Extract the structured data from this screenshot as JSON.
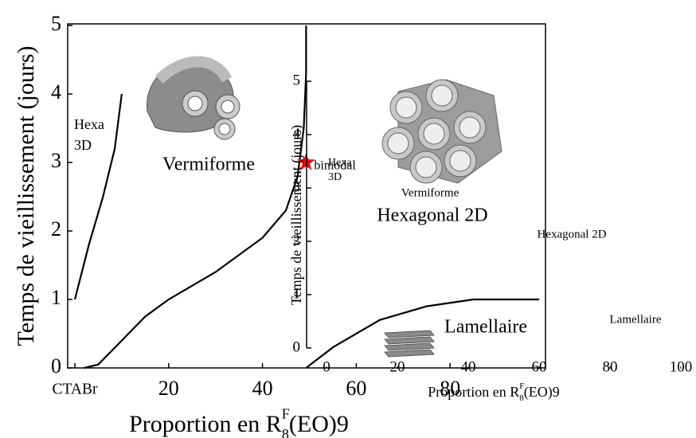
{
  "chart_data": [
    {
      "type": "line",
      "x_label": {
        "text": "Proportion en R",
        "sup": "F",
        "sub": "8",
        "rest": "(EO)9"
      },
      "y_label": "Temps de vieillissement (jours)",
      "xlim": [
        0,
        100
      ],
      "ylim": [
        0,
        5
      ],
      "xticks": [
        {
          "value": 0,
          "label": "CTABr"
        },
        20,
        40,
        60,
        80
      ],
      "yticks": [
        0,
        1,
        2,
        3,
        4,
        5
      ],
      "series": [
        {
          "color": "#000000",
          "x": [
            0,
            3,
            6,
            8.5,
            10
          ],
          "y": [
            1,
            1.8,
            2.5,
            3.2,
            4
          ]
        },
        {
          "color": "#000000",
          "x": [
            2,
            5,
            10,
            15,
            20,
            30,
            40,
            45,
            47.5,
            48.8,
            49.3,
            49.3
          ],
          "y": [
            0,
            0.05,
            0.4,
            0.75,
            1,
            1.4,
            1.9,
            2.3,
            2.8,
            3.5,
            4.3,
            5
          ]
        },
        {
          "color": "#000000",
          "x": [
            49.3,
            55,
            65,
            75,
            85,
            99
          ],
          "y": [
            0,
            0.3,
            0.7,
            0.9,
            1,
            1
          ]
        }
      ],
      "points": [
        {
          "label": "bimodal",
          "x": 49.3,
          "y": 3,
          "color": "#ff0000"
        }
      ],
      "annotations": [
        [
          "Hexa",
          "3D"
        ],
        [
          "Vermiforme"
        ],
        [
          "Hexagonal 2D"
        ],
        [
          "Lamellaire"
        ]
      ]
    },
    {
      "type": "line",
      "x_label": {
        "text": "Proportion en R",
        "sup": "F",
        "sub": "8",
        "rest": "(EO)9"
      },
      "y_label": "Temps de vieillissement (jours)",
      "xlim": [
        0,
        100
      ],
      "ylim": [
        0,
        5
      ],
      "xticks": [
        0,
        20,
        40,
        60,
        80,
        100
      ],
      "yticks": [
        0,
        1,
        2,
        3,
        4,
        5
      ],
      "annotations": [
        [
          "Hexa",
          "3D"
        ],
        [
          "Vermiforme"
        ],
        [
          "Hexagonal 2D"
        ],
        [
          "Lamellaire"
        ]
      ]
    }
  ]
}
